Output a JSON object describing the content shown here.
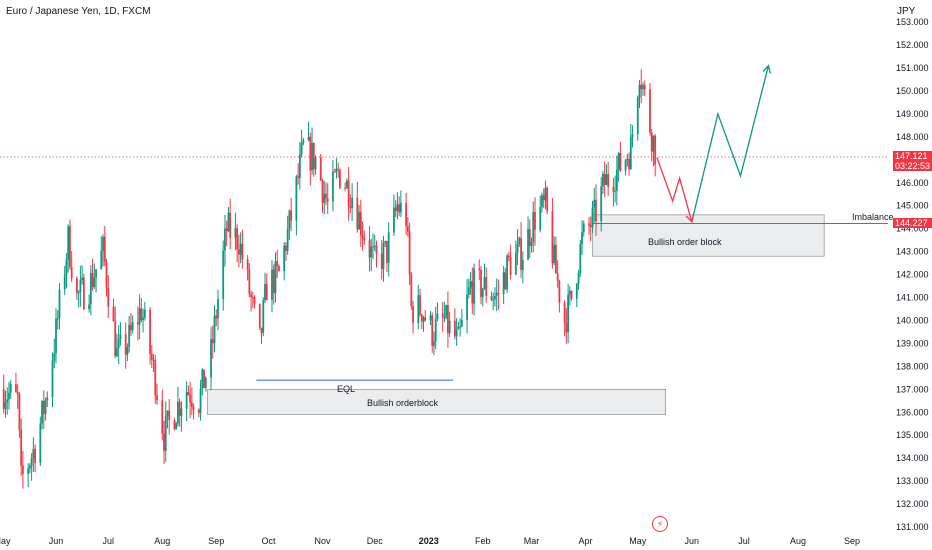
{
  "header": {
    "title": "Euro / Japanese Yen, 1D, FXCM",
    "currency": "JPY"
  },
  "price_axis": {
    "current_price": "147.121",
    "countdown": "03:22:53",
    "level_price": "144.227"
  },
  "annotations": {
    "imbalance": "Imbalance",
    "eql": "EQL",
    "ob_upper": "Bullish order block",
    "ob_lower": "Bullish orderblock"
  },
  "colors": {
    "up": "#089981",
    "down": "#f23645",
    "zone": "#e3e4e6",
    "eql_line": "#2962ff"
  },
  "chart_data": {
    "type": "candlestick",
    "title": "Euro / Japanese Yen, 1D, FXCM",
    "ylabel": "JPY",
    "ylim": [
      131.0,
      153.0
    ],
    "y_ticks": [
      "131.000",
      "132.000",
      "133.000",
      "134.000",
      "135.000",
      "136.000",
      "137.000",
      "138.000",
      "139.000",
      "140.000",
      "141.000",
      "142.000",
      "143.000",
      "144.000",
      "145.000",
      "146.000",
      "147.000",
      "148.000",
      "149.000",
      "150.000",
      "151.000",
      "152.000",
      "153.000"
    ],
    "x_ticks": [
      "May",
      "Jun",
      "Jul",
      "Aug",
      "Sep",
      "Oct",
      "Nov",
      "Dec",
      "2023",
      "Feb",
      "Mar",
      "Apr",
      "May",
      "Jun",
      "Jul",
      "Aug",
      "Sep"
    ],
    "price_path": [
      [
        "2022-05-01",
        137.0
      ],
      [
        "2022-05-10",
        136.5
      ],
      [
        "2022-05-12",
        133.0
      ],
      [
        "2022-05-20",
        134.5
      ],
      [
        "2022-05-26",
        136.5
      ],
      [
        "2022-06-01",
        139.5
      ],
      [
        "2022-06-08",
        143.5
      ],
      [
        "2022-06-13",
        141.0
      ],
      [
        "2022-06-20",
        141.5
      ],
      [
        "2022-06-28",
        143.0
      ],
      [
        "2022-07-06",
        138.5
      ],
      [
        "2022-07-12",
        139.0
      ],
      [
        "2022-07-20",
        140.5
      ],
      [
        "2022-07-28",
        137.5
      ],
      [
        "2022-08-02",
        135.0
      ],
      [
        "2022-08-08",
        136.0
      ],
      [
        "2022-08-15",
        137.0
      ],
      [
        "2022-08-22",
        136.5
      ],
      [
        "2022-08-29",
        138.5
      ],
      [
        "2022-09-07",
        144.0
      ],
      [
        "2022-09-14",
        143.5
      ],
      [
        "2022-09-22",
        140.5
      ],
      [
        "2022-09-26",
        139.0
      ],
      [
        "2022-09-30",
        141.5
      ],
      [
        "2022-10-07",
        142.0
      ],
      [
        "2022-10-14",
        144.5
      ],
      [
        "2022-10-21",
        147.5
      ],
      [
        "2022-10-28",
        147.0
      ],
      [
        "2022-11-04",
        145.0
      ],
      [
        "2022-11-10",
        146.5
      ],
      [
        "2022-11-18",
        145.5
      ],
      [
        "2022-11-24",
        144.0
      ],
      [
        "2022-12-01",
        142.5
      ],
      [
        "2022-12-08",
        143.0
      ],
      [
        "2022-12-14",
        145.0
      ],
      [
        "2022-12-19",
        144.5
      ],
      [
        "2022-12-22",
        140.5
      ],
      [
        "2022-12-28",
        140.5
      ],
      [
        "2023-01-03",
        139.5
      ],
      [
        "2023-01-10",
        140.0
      ],
      [
        "2023-01-18",
        139.0
      ],
      [
        "2023-01-25",
        141.5
      ],
      [
        "2023-02-01",
        141.5
      ],
      [
        "2023-02-09",
        141.0
      ],
      [
        "2023-02-16",
        142.5
      ],
      [
        "2023-02-24",
        143.0
      ],
      [
        "2023-03-03",
        144.5
      ],
      [
        "2023-03-09",
        145.0
      ],
      [
        "2023-03-14",
        142.5
      ],
      [
        "2023-03-20",
        140.0
      ],
      [
        "2023-03-24",
        141.0
      ],
      [
        "2023-03-30",
        143.5
      ],
      [
        "2023-04-06",
        144.5
      ],
      [
        "2023-04-12",
        146.0
      ],
      [
        "2023-04-19",
        146.5
      ],
      [
        "2023-04-27",
        147.5
      ],
      [
        "2023-05-02",
        151.0
      ],
      [
        "2023-05-08",
        148.5
      ],
      [
        "2023-05-12",
        147.1
      ]
    ],
    "projection_down": [
      [
        "2023-05-12",
        147.1
      ],
      [
        "2023-05-21",
        145.2
      ],
      [
        "2023-05-25",
        146.2
      ],
      [
        "2023-06-01",
        144.3
      ]
    ],
    "projection_up": [
      [
        "2023-06-01",
        144.3
      ],
      [
        "2023-06-16",
        149.0
      ],
      [
        "2023-06-29",
        146.3
      ],
      [
        "2023-07-15",
        151.1
      ]
    ],
    "zones": [
      {
        "label": "Bullish order block",
        "x0": "2023-04-05",
        "x1": "2023-08-16",
        "y0": 142.8,
        "y1": 144.6
      },
      {
        "label": "Bullish orderblock",
        "x0": "2022-08-27",
        "x1": "2023-05-17",
        "y0": 135.9,
        "y1": 137.0
      }
    ],
    "eql": {
      "x0": "2022-09-24",
      "x1": "2023-01-15",
      "y": 137.4
    },
    "current_price": 147.121,
    "level": 144.227
  }
}
